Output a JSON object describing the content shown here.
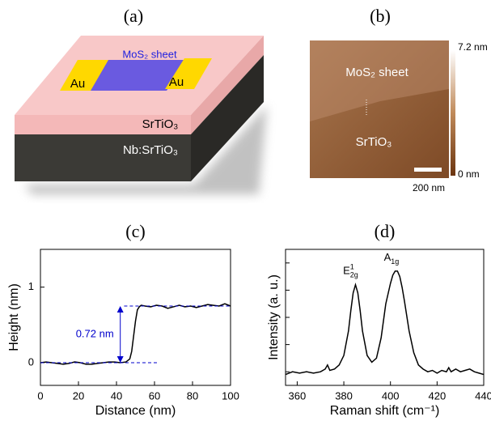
{
  "panel_a": {
    "label": "(a)",
    "sheet": "MoS₂ sheet",
    "au_left": "Au",
    "au_right": "Au",
    "top_layer": "SrTiO₃",
    "substrate": "Nb:SrTiO₃"
  },
  "panel_b": {
    "label": "(b)",
    "sheet": "MoS₂ sheet",
    "substrate": "SrTiO₃",
    "scale_max": "7.2 nm",
    "scale_min": "0 nm",
    "scale_bar": "200 nm"
  },
  "chart_data": [
    {
      "type": "line",
      "title": "(c)",
      "xlabel": "Distance (nm)",
      "ylabel": "Height (nm)",
      "xlim": [
        0,
        100
      ],
      "xticks": [
        0,
        20,
        40,
        60,
        80,
        100
      ],
      "ylim": [
        -0.3,
        1.5
      ],
      "yticks": [
        0,
        1
      ],
      "x": [
        0,
        3,
        6,
        9,
        12,
        15,
        18,
        21,
        24,
        27,
        30,
        33,
        36,
        39,
        42,
        45,
        47,
        48,
        49,
        50,
        51,
        52,
        53,
        55,
        58,
        61,
        64,
        67,
        70,
        73,
        76,
        79,
        82,
        85,
        88,
        91,
        94,
        97,
        100
      ],
      "series": [
        {
          "color": "#000000",
          "values": [
            0,
            0.01,
            0,
            -0.01,
            -0.02,
            -0.01,
            0.01,
            0,
            -0.02,
            -0.02,
            -0.01,
            0,
            0.01,
            0.01,
            0,
            0.01,
            0.05,
            0.15,
            0.35,
            0.55,
            0.7,
            0.74,
            0.76,
            0.75,
            0.74,
            0.76,
            0.75,
            0.72,
            0.74,
            0.76,
            0.74,
            0.75,
            0.73,
            0.75,
            0.77,
            0.76,
            0.75,
            0.78,
            0.75
          ]
        }
      ],
      "annotation": {
        "text": "0.72 nm",
        "color": "#0000cc",
        "low": 0,
        "high": 0.75
      }
    },
    {
      "type": "line",
      "title": "(d)",
      "xlabel": "Raman shift (cm⁻¹)",
      "ylabel": "Intensity (a. u.)",
      "xlim": [
        355,
        440
      ],
      "xticks": [
        360,
        380,
        400,
        420,
        440
      ],
      "ylim": [
        0,
        1
      ],
      "yticks": [
        0.1,
        0.3,
        0.5,
        0.7,
        0.9
      ],
      "x": [
        355,
        358,
        361,
        364,
        367,
        370,
        372,
        373,
        374,
        376,
        378,
        380,
        382,
        383,
        384,
        385,
        386,
        387,
        388,
        390,
        392,
        394,
        396,
        398,
        400,
        401,
        402,
        403,
        404,
        405,
        406,
        408,
        410,
        412,
        414,
        416,
        418,
        420,
        422,
        424,
        425,
        426,
        428,
        430,
        432,
        434,
        436,
        438,
        440
      ],
      "series": [
        {
          "color": "#000000",
          "values": [
            0.08,
            0.1,
            0.09,
            0.1,
            0.09,
            0.1,
            0.12,
            0.15,
            0.11,
            0.12,
            0.15,
            0.22,
            0.4,
            0.55,
            0.68,
            0.74,
            0.68,
            0.55,
            0.4,
            0.22,
            0.17,
            0.2,
            0.35,
            0.6,
            0.75,
            0.81,
            0.84,
            0.84,
            0.8,
            0.72,
            0.62,
            0.4,
            0.24,
            0.15,
            0.12,
            0.1,
            0.11,
            0.09,
            0.11,
            0.1,
            0.13,
            0.1,
            0.12,
            0.1,
            0.11,
            0.12,
            0.1,
            0.09,
            0.08
          ]
        }
      ],
      "peak_labels": [
        {
          "base": "E",
          "sup": "1",
          "sub": "2g",
          "x": 385,
          "y": 0.74
        },
        {
          "base": "A",
          "sub": "1g",
          "x": 402.5,
          "y": 0.84
        }
      ]
    }
  ]
}
